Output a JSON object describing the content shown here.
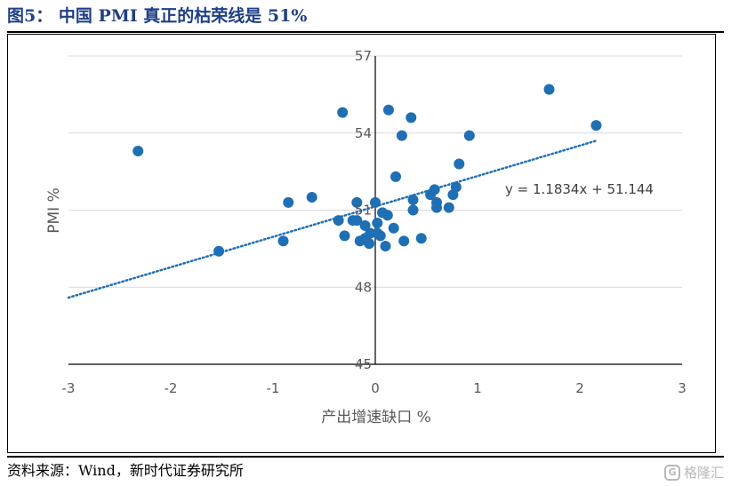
{
  "figure": {
    "title": "图5：  中国 PMI 真正的枯荣线是 51%",
    "source": "资料来源：Wind，新时代证券研究所",
    "watermark": "格隆汇",
    "watermark_icon": "G-logo-icon"
  },
  "chart_data": {
    "type": "scatter",
    "title": "",
    "xlabel": "产出增速缺口 %",
    "ylabel": "PMI %",
    "xlim": [
      -3,
      3
    ],
    "ylim": [
      45,
      57
    ],
    "xticks": [
      "-3",
      "-2",
      "-1",
      "0",
      "1",
      "2",
      "3"
    ],
    "yticks": [
      "45",
      "48",
      "51",
      "54",
      "57"
    ],
    "grid": "horizontal",
    "color": "#1f6fb4",
    "trendline": {
      "slope": 1.1834,
      "intercept": 51.144,
      "style": "dotted",
      "label": "y = 1.1834x + 51.144"
    },
    "points": [
      [
        -2.32,
        53.3
      ],
      [
        -1.53,
        49.4
      ],
      [
        -0.9,
        49.8
      ],
      [
        -0.85,
        51.3
      ],
      [
        -0.62,
        51.5
      ],
      [
        -0.32,
        54.8
      ],
      [
        -0.3,
        50.0
      ],
      [
        -0.36,
        50.6
      ],
      [
        -0.22,
        50.6
      ],
      [
        -0.18,
        50.6
      ],
      [
        -0.18,
        51.3
      ],
      [
        -0.15,
        49.8
      ],
      [
        -0.1,
        50.4
      ],
      [
        -0.1,
        49.9
      ],
      [
        -0.06,
        49.7
      ],
      [
        -0.05,
        50.1
      ],
      [
        0.0,
        51.3
      ],
      [
        0.02,
        50.5
      ],
      [
        0.02,
        50.1
      ],
      [
        0.05,
        50.0
      ],
      [
        0.07,
        50.9
      ],
      [
        0.1,
        49.6
      ],
      [
        0.12,
        50.8
      ],
      [
        0.13,
        54.9
      ],
      [
        0.18,
        50.3
      ],
      [
        0.2,
        52.3
      ],
      [
        0.26,
        53.9
      ],
      [
        0.28,
        49.8
      ],
      [
        0.35,
        54.6
      ],
      [
        0.37,
        51.4
      ],
      [
        0.37,
        51.0
      ],
      [
        0.45,
        49.9
      ],
      [
        0.54,
        51.6
      ],
      [
        0.58,
        51.8
      ],
      [
        0.6,
        51.3
      ],
      [
        0.6,
        51.1
      ],
      [
        0.72,
        51.1
      ],
      [
        0.76,
        51.6
      ],
      [
        0.79,
        51.9
      ],
      [
        0.82,
        52.8
      ],
      [
        0.92,
        53.9
      ],
      [
        1.7,
        55.7
      ],
      [
        2.16,
        54.3
      ]
    ]
  }
}
